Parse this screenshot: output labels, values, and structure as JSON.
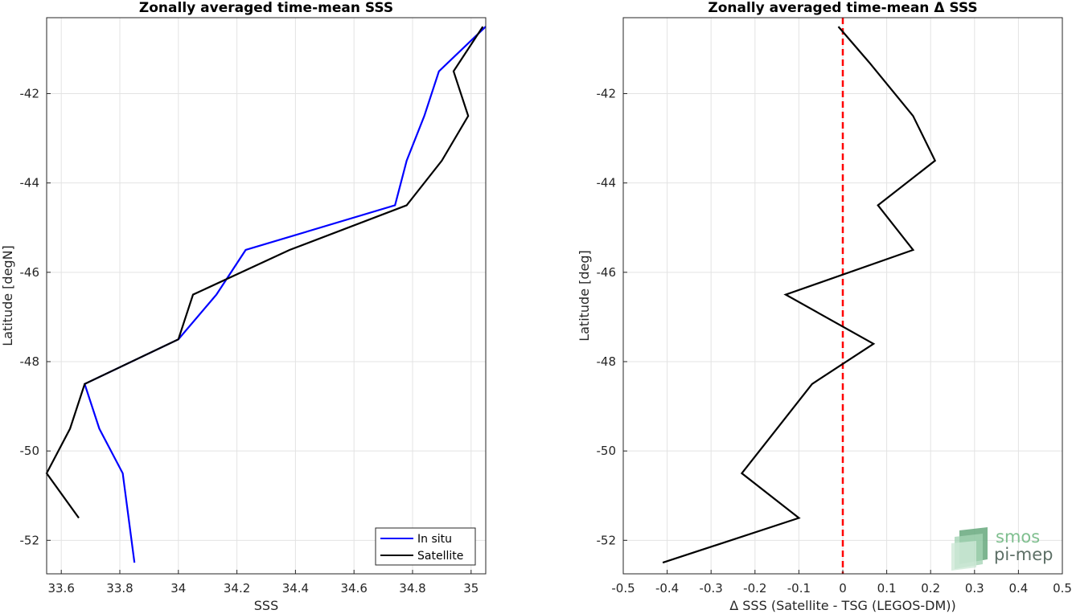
{
  "chart_data": [
    {
      "type": "line",
      "title": "Zonally averaged time-mean SSS",
      "xlabel": "SSS",
      "ylabel": "Latitude [degN]",
      "xlim": [
        33.55,
        35.05
      ],
      "ylim": [
        -52.75,
        -40.3
      ],
      "xticks": [
        33.6,
        33.8,
        34,
        34.2,
        34.4,
        34.6,
        34.8,
        35
      ],
      "xtick_labels": [
        "33.6",
        "33.8",
        "34",
        "34.2",
        "34.4",
        "34.6",
        "34.8",
        "35"
      ],
      "yticks": [
        -52,
        -50,
        -48,
        -46,
        -44,
        -42
      ],
      "ytick_labels": [
        "-52",
        "-50",
        "-48",
        "-46",
        "-44",
        "-42"
      ],
      "grid": true,
      "legend": "bottom-right",
      "series": [
        {
          "name": "In situ",
          "color": "#0000ff",
          "x": [
            35.05,
            34.89,
            34.84,
            34.78,
            34.74,
            34.23,
            34.13,
            34.0,
            33.68,
            33.73,
            33.81,
            33.85
          ],
          "y": [
            -40.5,
            -41.5,
            -42.5,
            -43.5,
            -44.5,
            -45.5,
            -46.5,
            -47.5,
            -48.5,
            -49.5,
            -50.5,
            -52.5
          ]
        },
        {
          "name": "Satellite",
          "color": "#000000",
          "x": [
            35.04,
            34.94,
            34.99,
            34.9,
            34.78,
            34.38,
            34.05,
            34.0,
            33.68,
            33.63,
            33.55,
            33.66
          ],
          "y": [
            -40.5,
            -41.5,
            -42.5,
            -43.5,
            -44.5,
            -45.5,
            -46.5,
            -47.5,
            -48.5,
            -49.5,
            -50.5,
            -51.5
          ]
        }
      ]
    },
    {
      "type": "line",
      "title": "Zonally averaged time-mean Δ SSS",
      "xlabel": "Δ SSS (Satellite - TSG (LEGOS-DM))",
      "ylabel": "Latitude [deg]",
      "xlim": [
        -0.5,
        0.5
      ],
      "ylim": [
        -52.75,
        -40.3
      ],
      "xticks": [
        -0.5,
        -0.4,
        -0.3,
        -0.2,
        -0.1,
        0,
        0.1,
        0.2,
        0.3,
        0.4,
        0.5
      ],
      "xtick_labels": [
        "-0.5",
        "-0.4",
        "-0.3",
        "-0.2",
        "-0.1",
        "0",
        "0.1",
        "0.2",
        "0.3",
        "0.4",
        "0.5"
      ],
      "yticks": [
        -52,
        -50,
        -48,
        -46,
        -44,
        -42
      ],
      "ytick_labels": [
        "-52",
        "-50",
        "-48",
        "-46",
        "-44",
        "-42"
      ],
      "grid": true,
      "reference_line": {
        "x": 0,
        "color": "#ff0000",
        "style": "dashed"
      },
      "series": [
        {
          "color": "#000000",
          "x": [
            -0.01,
            0.06,
            0.16,
            0.21,
            0.08,
            0.16,
            -0.13,
            0.07,
            -0.07,
            -0.15,
            -0.23,
            -0.1,
            -0.41
          ],
          "y": [
            -40.5,
            -41.3,
            -42.5,
            -43.5,
            -44.5,
            -45.5,
            -46.5,
            -47.6,
            -48.5,
            -49.5,
            -50.5,
            -51.5,
            -52.5
          ]
        }
      ]
    }
  ],
  "watermark": {
    "line1": "smos",
    "line2": "pi-mep",
    "color1": "#7fbf8f",
    "color2": "#5d6f66"
  }
}
